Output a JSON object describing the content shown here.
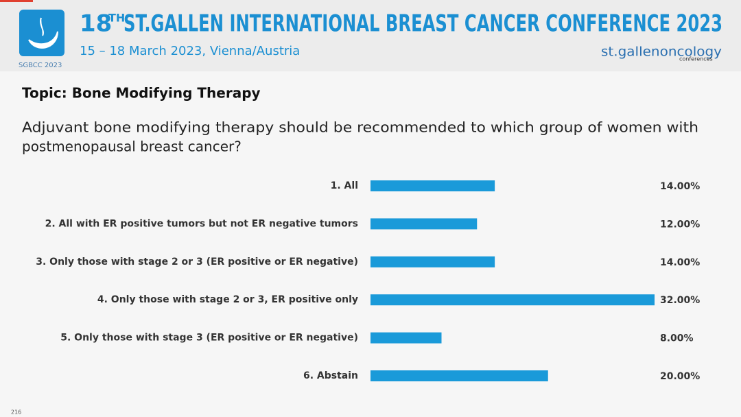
{
  "header": {
    "logo_text": "SGBCC 2023",
    "title_number": "18",
    "title_suffix": "TH",
    "title": "ST.GALLEN INTERNATIONAL BREAST CANCER CONFERENCE 2023",
    "subtitle": "15 – 18 March 2023, Vienna/Austria",
    "brand": "st.gallenoncology",
    "brand_sub": "conferences"
  },
  "topic": "Topic: Bone Modifying Therapy",
  "question_lines": [
    "Adjuvant bone modifying therapy should be recommended to which group of women with",
    "postmenopausal breast cancer?"
  ],
  "chart_data": {
    "type": "bar",
    "categories": [
      "1.   All",
      "2.   All with ER positive tumors but not ER negative tumors",
      "3.   Only those with stage 2 or 3  (ER positive or ER negative)",
      "4.   Only those with stage 2 or 3,  ER positive only",
      "5.   Only those with stage 3 (ER positive or ER negative)",
      "6.   Abstain"
    ],
    "values": [
      14,
      12,
      14,
      32,
      8,
      20
    ],
    "value_labels": [
      "14.00%",
      "12.00%",
      "14.00%",
      "32.00%",
      "8.00%",
      "20.00%"
    ],
    "color": "#1a9ad9"
  },
  "page_number": "216"
}
